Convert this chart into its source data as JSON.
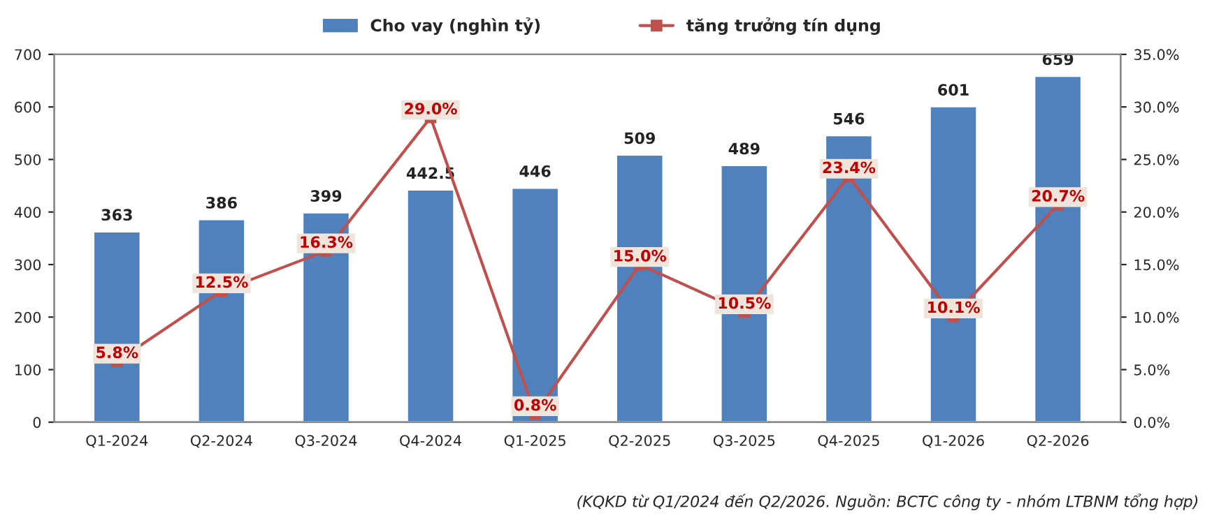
{
  "chart_data": {
    "type": "bar",
    "categories": [
      "Q1-2024",
      "Q2-2024",
      "Q3-2024",
      "Q4-2024",
      "Q1-2025",
      "Q2-2025",
      "Q3-2025",
      "Q4-2025",
      "Q1-2026",
      "Q2-2026"
    ],
    "series": [
      {
        "name": "Cho vay (nghìn tỷ)",
        "color": "#4f81bd",
        "values": [
          363,
          386,
          399,
          442.5,
          446,
          509,
          489,
          546,
          601,
          659
        ],
        "value_labels": [
          "363",
          "386",
          "399",
          "442.5",
          "446",
          "509",
          "489",
          "546",
          "601",
          "659"
        ]
      },
      {
        "name": "tăng trưởng tín dụng",
        "type": "line",
        "axis": "y2",
        "color": "#c0504d",
        "marker": "square",
        "values": [
          5.8,
          12.5,
          16.3,
          29.0,
          0.8,
          15.0,
          10.5,
          23.4,
          10.1,
          20.7
        ],
        "value_labels": [
          "5.8%",
          "12.5%",
          "16.3%",
          "29.0%",
          "0.8%",
          "15.0%",
          "10.5%",
          "23.4%",
          "10.1%",
          "20.7%"
        ]
      }
    ],
    "ylim": [
      0,
      700
    ],
    "yticks": [
      0,
      100,
      200,
      300,
      400,
      500,
      600,
      700
    ],
    "y2lim": [
      0,
      35
    ],
    "y2ticks": [
      {
        "value": 0,
        "label": "0.0%"
      },
      {
        "value": 5,
        "label": "5.0%"
      },
      {
        "value": 10,
        "label": "10.0%"
      },
      {
        "value": 15,
        "label": "15.0%"
      },
      {
        "value": 20,
        "label": "20.0%"
      },
      {
        "value": 25,
        "label": "25.0%"
      },
      {
        "value": 30,
        "label": "30.0%"
      },
      {
        "value": 35,
        "label": "35.0%"
      }
    ],
    "grid": false,
    "legend": "top",
    "annotations": [
      "(KQKD từ Q1/2024 đến Q2/2026. Nguồn: BCTC công ty - nhóm LTBNM tổng hợp)"
    ]
  }
}
